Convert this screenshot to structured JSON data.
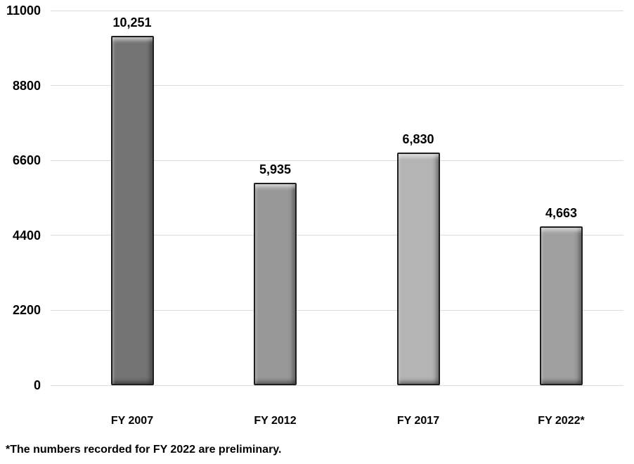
{
  "chart_data": {
    "type": "bar",
    "title": "",
    "xlabel": "",
    "ylabel": "",
    "categories": [
      "FY 2007",
      "FY 2012",
      "FY 2017",
      "FY 2022*"
    ],
    "values": [
      10251,
      5935,
      6830,
      4663
    ],
    "value_labels": [
      "10,251",
      "5,935",
      "6,830",
      "4,663"
    ],
    "bar_colors": [
      "#747474",
      "#989898",
      "#b4b4b4",
      "#9f9f9f"
    ],
    "bar_border_color": "#1f1f1f",
    "ylim": [
      0,
      11000
    ],
    "yticks": [
      0,
      2200,
      4400,
      6600,
      8800,
      11000
    ],
    "ytick_labels": [
      "0",
      "2200",
      "4400",
      "6600",
      "8800",
      "11000"
    ],
    "grid": "horizontal",
    "gridline_color": "#dcdcdc",
    "legend": "none",
    "footnote": "*The numbers recorded for FY 2022 are preliminary."
  }
}
